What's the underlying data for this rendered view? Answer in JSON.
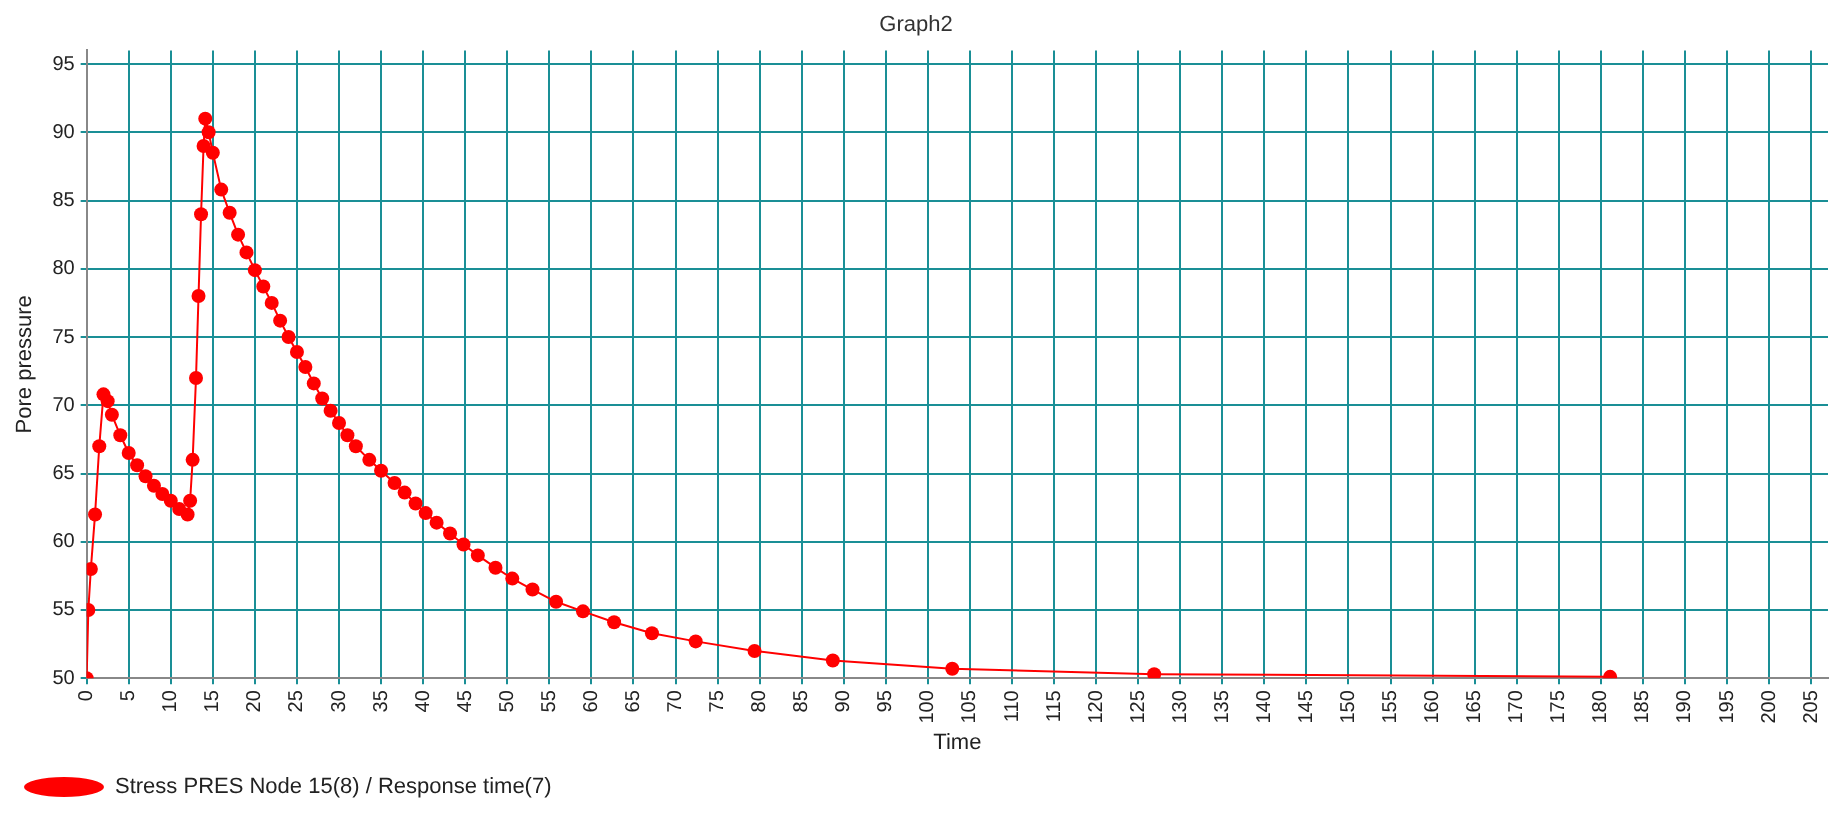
{
  "chart_data": {
    "type": "line",
    "title": "Graph2",
    "xlabel": "Time",
    "ylabel": "Pore pressure",
    "x": [
      0,
      0.2,
      0.5,
      1,
      1.5,
      2,
      2.5,
      3,
      4,
      5,
      6,
      7,
      8,
      9,
      10,
      11,
      12,
      12.3,
      12.6,
      13,
      13.3,
      13.6,
      13.9,
      14.1,
      14.5,
      15,
      16,
      17,
      18,
      19,
      20,
      21,
      22,
      23,
      24,
      25,
      26,
      27,
      28,
      29,
      30,
      31,
      32,
      33.6,
      35,
      36.6,
      37.8,
      39.1,
      40.3,
      41.6,
      43.2,
      44.8,
      46.5,
      48.6,
      50.6,
      53,
      55.8,
      59,
      62.7,
      67.2,
      72.4,
      79.4,
      88.7,
      102.9,
      126.9,
      181.1
    ],
    "series": [
      {
        "name": "Stress PRES Node 15(8) / Response time(7)",
        "color": "#ff0000",
        "values": [
          50,
          55,
          58,
          62,
          67,
          70.8,
          70.3,
          69.3,
          67.8,
          66.5,
          65.6,
          64.8,
          64.1,
          63.5,
          63,
          62.4,
          62,
          63,
          66,
          72,
          78,
          84,
          89,
          91,
          90,
          88.5,
          85.8,
          84.1,
          82.5,
          81.2,
          79.9,
          78.7,
          77.5,
          76.2,
          75,
          73.9,
          72.8,
          71.6,
          70.5,
          69.6,
          68.7,
          67.8,
          67,
          66,
          65.2,
          64.3,
          63.6,
          62.8,
          62.1,
          61.4,
          60.6,
          59.8,
          59,
          58.1,
          57.3,
          56.5,
          55.6,
          54.9,
          54.1,
          53.3,
          52.7,
          52,
          51.3,
          50.7,
          50.3,
          50.1
        ]
      }
    ],
    "xlim": [
      0,
      207
    ],
    "xticks": [
      0,
      5,
      10,
      15,
      20,
      25,
      30,
      35,
      40,
      45,
      50,
      55,
      60,
      65,
      70,
      75,
      80,
      85,
      90,
      95,
      100,
      105,
      110,
      115,
      120,
      125,
      130,
      135,
      140,
      145,
      150,
      155,
      160,
      165,
      170,
      175,
      180,
      185,
      190,
      195,
      200,
      205
    ],
    "ylim": [
      50,
      96
    ],
    "yticks": [
      50,
      55,
      60,
      65,
      70,
      75,
      80,
      85,
      90,
      95
    ],
    "grid": true,
    "legend": "bottom left",
    "marker": "circle",
    "line_style": "solid"
  }
}
